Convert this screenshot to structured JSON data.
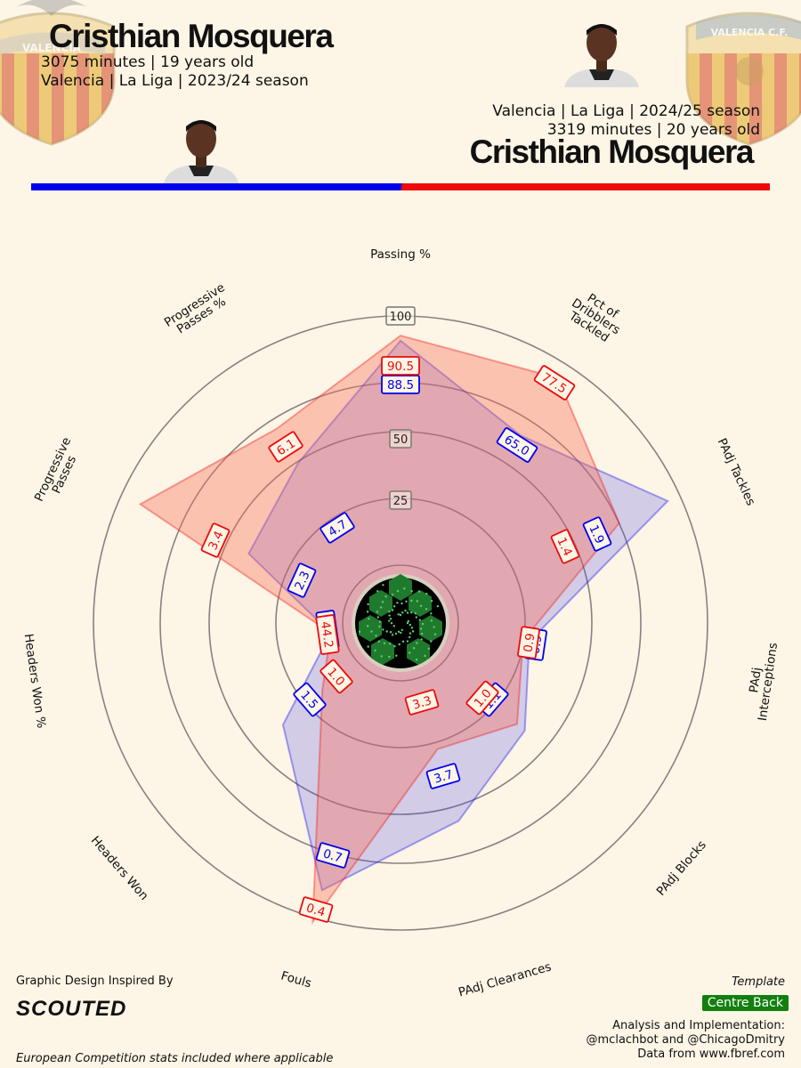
{
  "player1": {
    "name": "Cristhian Mosquera",
    "minutes_age": "3075 minutes | 19 years old",
    "club_season": "Valencia | La Liga | 2023/24 season",
    "color": "#0000ee"
  },
  "player2": {
    "name": "Cristhian Mosquera",
    "club_season": "Valencia | La Liga | 2024/25 season",
    "minutes_age": "3319 minutes | 20 years old",
    "color": "#ee0a0a"
  },
  "crest_left_text": "VALENCIA",
  "crest_right_text": "VALENCIA C.F.",
  "chart_data": {
    "type": "radar",
    "categories": [
      "Passing %",
      "Pct of Dribblers Tackled",
      "PAdj Tackles",
      "PAdj Interceptions",
      "PAdj Blocks",
      "PAdj Clearances",
      "Fouls",
      "Headers Won",
      "Headers Won %",
      "Progressive Passes",
      "Progressive Passes %"
    ],
    "scale_rings": [
      "25",
      "50",
      "100"
    ],
    "series": [
      {
        "key": "p1",
        "color": "#0000ee",
        "fill": "rgba(60,60,235,0.22)",
        "labels": [
          "88.5",
          "65.0",
          "1.9",
          "0.9",
          "1.1",
          "3.7",
          "0.7",
          "1.5",
          "44.2",
          "2.3",
          "4.7"
        ],
        "radius_fraction": [
          0.885,
          0.65,
          0.93,
          0.285,
          0.42,
          0.585,
          0.87,
          0.385,
          0.05,
          0.43,
          0.52
        ]
      },
      {
        "key": "p2",
        "color": "#ee0a0a",
        "fill": "rgba(250,110,90,0.38)",
        "labels": [
          "90.5",
          "77.5",
          "1.4",
          "0.9",
          "1.0",
          "3.3",
          "0.4",
          "1.0",
          "44.2",
          "3.4",
          "6.1"
        ],
        "radius_fraction": [
          0.905,
          0.92,
          0.72,
          0.26,
          0.38,
          0.29,
          1.0,
          0.18,
          0.05,
          0.9,
          0.68
        ]
      }
    ]
  },
  "footer": {
    "inspired": "Graphic Design Inspired By",
    "brand": "SCOUTED",
    "note": "European Competition stats included where applicable",
    "template_label": "Template",
    "template_value": "Centre Back",
    "credit1": "Analysis and Implementation:",
    "credit2": "@mclachbot and @ChicagoDmitry",
    "credit3": "Data from www.fbref.com"
  }
}
